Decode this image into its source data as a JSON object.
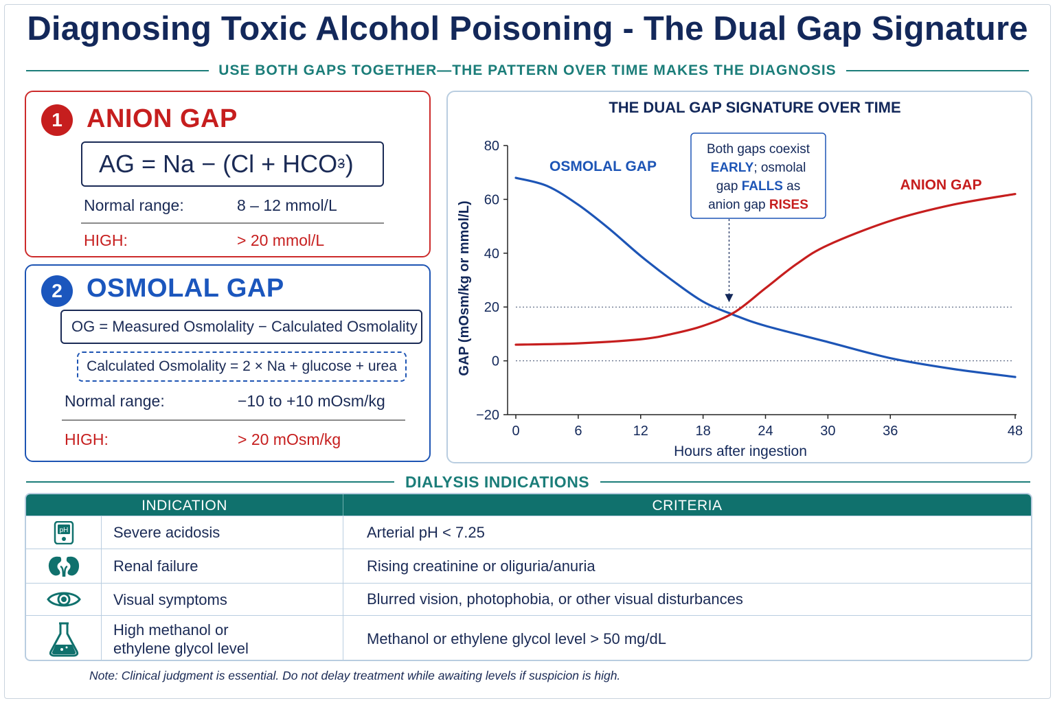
{
  "title": "Diagnosing Toxic Alcohol Poisoning - The Dual Gap Signature",
  "subtitle": "USE BOTH GAPS TOGETHER—THE PATTERN OVER TIME MAKES THE DIAGNOSIS",
  "anion_gap": {
    "number": "1",
    "title": "ANION GAP",
    "formula_main": "AG = Na − (Cl + HCO",
    "formula_sub": "3",
    "formula_sup": "−",
    "formula_end": ")",
    "normal_label": "Normal range:",
    "normal_value": "8 – 12 mmol/L",
    "high_label": "HIGH:",
    "high_value": "> 20 mmol/L"
  },
  "osmolal_gap": {
    "number": "2",
    "title": "OSMOLAL GAP",
    "formula": "OG = Measured Osmolality − Calculated Osmolality",
    "calc_formula": "Calculated Osmolality = 2 × Na + glucose + urea",
    "normal_label": "Normal range:",
    "normal_value": "−10 to +10 mOsm/kg",
    "high_label": "HIGH:",
    "high_value": "> 20 mOsm/kg"
  },
  "chart_data": {
    "type": "line",
    "title": "THE DUAL GAP SIGNATURE OVER TIME",
    "xlabel": "Hours after ingestion",
    "ylabel": "GAP (mOsm/kg or mmol/L)",
    "xlim": [
      0,
      48
    ],
    "ylim": [
      -20,
      80
    ],
    "xticks": [
      0,
      6,
      12,
      18,
      24,
      30,
      36,
      48
    ],
    "yticks": [
      80,
      60,
      40,
      20,
      0,
      -20
    ],
    "reference_lines": [
      20,
      0
    ],
    "series": [
      {
        "name": "OSMOLAL GAP",
        "color": "#1d55b6",
        "x": [
          0,
          3,
          6,
          9,
          12,
          15,
          18,
          21,
          24,
          30,
          36,
          42,
          48
        ],
        "y": [
          68,
          65,
          58,
          49,
          39,
          30,
          22,
          17,
          13,
          7,
          1,
          -3,
          -6
        ]
      },
      {
        "name": "ANION GAP",
        "color": "#c61e1e",
        "x": [
          0,
          6,
          12,
          15,
          18,
          21,
          24,
          27,
          30,
          36,
          42,
          48
        ],
        "y": [
          6,
          6.5,
          8,
          10,
          13,
          18,
          27,
          36,
          43,
          52,
          58,
          62
        ]
      }
    ],
    "annotation": {
      "prefix": "Both gaps coexist",
      "early": "EARLY",
      "mid1": "; osmolal",
      "mid2": "gap",
      "falls": "FALLS",
      "mid3": " as",
      "mid4": "anion gap",
      "rises": "RISES",
      "arrow_x": 20.5,
      "arrow_y": 21
    }
  },
  "dialysis": {
    "heading": "DIALYSIS INDICATIONS",
    "col1": "INDICATION",
    "col2": "CRITERIA",
    "rows": [
      {
        "icon": "ph-meter-icon",
        "indication": "Severe acidosis",
        "criteria": "Arterial pH < 7.25"
      },
      {
        "icon": "kidneys-icon",
        "indication": "Renal failure",
        "criteria": "Rising creatinine or oliguria/anuria"
      },
      {
        "icon": "eye-icon",
        "indication": "Visual symptoms",
        "criteria": "Blurred vision, photophobia, or other visual disturbances"
      },
      {
        "icon": "flask-icon",
        "indication": "High methanol or\nethylene glycol level",
        "criteria": "Methanol or ethylene glycol level > 50 mg/dL"
      }
    ],
    "ph_label": "pH"
  },
  "note": "Note: Clinical judgment is essential. Do not delay treatment while awaiting levels if suspicion is high.",
  "colors": {
    "red": "#c61e1e",
    "blue": "#1d55b6",
    "teal": "#10716d",
    "navy": "#13285a"
  }
}
